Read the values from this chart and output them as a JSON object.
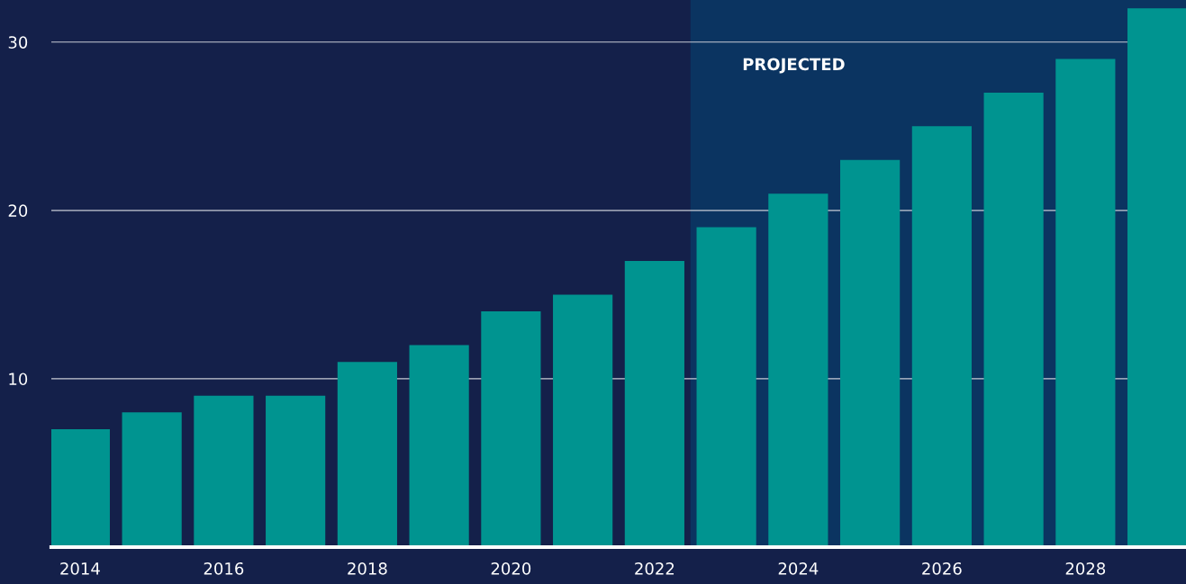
{
  "chart_data": {
    "type": "bar",
    "x": [
      2014,
      2015,
      2016,
      2017,
      2018,
      2019,
      2020,
      2021,
      2022,
      2023,
      2024,
      2025,
      2026,
      2027,
      2028,
      2029
    ],
    "values": [
      7,
      8,
      9,
      9,
      11,
      12,
      14,
      15,
      17,
      19,
      21,
      23,
      25,
      27,
      29,
      32
    ],
    "color": "#009490",
    "xlim": [
      2013.6,
      2029.4
    ],
    "xticks": [
      2014,
      2016,
      2018,
      2020,
      2022,
      2024,
      2026,
      2028
    ],
    "ylim": [
      0,
      32.5
    ],
    "yticks": [
      10,
      20,
      30
    ],
    "grid": "y",
    "bands": [
      {
        "axis": "x",
        "from": 2022.5,
        "to": 2029.4,
        "label": "PROJECTED",
        "color": "#0b3461"
      }
    ]
  }
}
